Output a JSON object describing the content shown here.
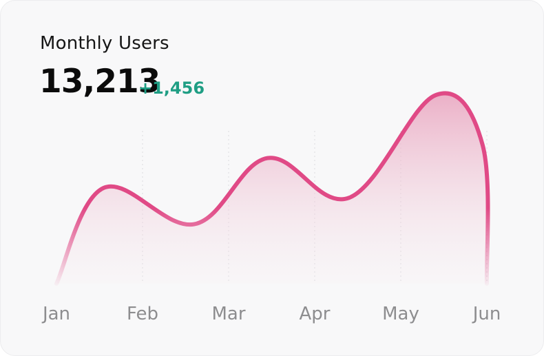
{
  "card": {
    "title": "Monthly Users",
    "total": "13,213",
    "delta": "+1,456"
  },
  "colors": {
    "line": "#e04a86",
    "fill": "#e9a3be",
    "delta": "#1f9e84",
    "tick": "#8d8d8f",
    "background": "#f8f8f9"
  },
  "chart_data": {
    "type": "area",
    "categories": [
      "Jan",
      "Feb",
      "Mar",
      "Apr",
      "May",
      "Jun"
    ],
    "series": [
      {
        "x": [
          0,
          0.55,
          1.6,
          2.45,
          3.4,
          4.4,
          4.95,
          5.0
        ],
        "values": [
          0,
          2900,
          1800,
          3800,
          2600,
          5700,
          4200,
          0
        ]
      }
    ],
    "ylim": [
      0,
      6500
    ],
    "grid": "vertical-dotted",
    "smooth": true
  }
}
